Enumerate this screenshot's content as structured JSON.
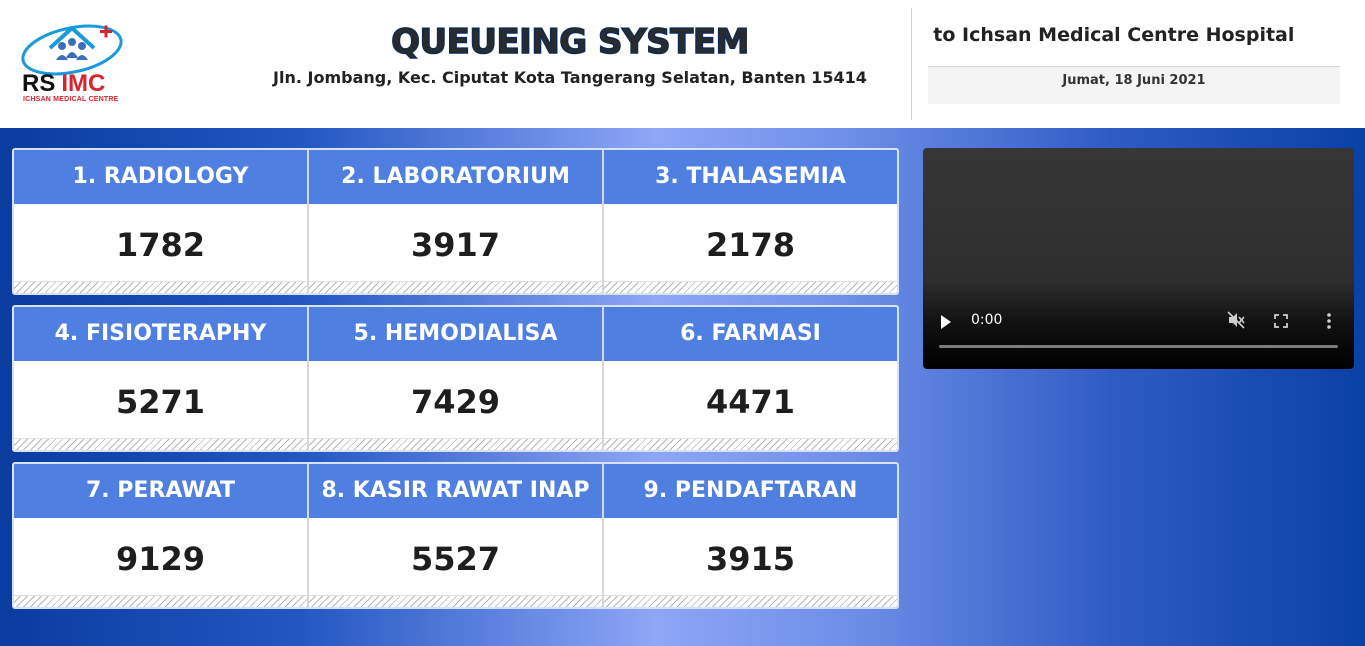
{
  "header": {
    "logo": {
      "rs": "RS",
      "imc": "IMC",
      "subtitle": "ICHSAN MEDICAL CENTRE"
    },
    "title": "QUEUEING SYSTEM",
    "address": "Jln. Jombang, Kec. Ciputat Kota Tangerang Selatan, Banten 15414",
    "marquee": "Welcome to Ichsan Medical Centre Hospital",
    "date": "Jumat, 18 Juni 2021"
  },
  "queues": [
    [
      {
        "label": "1. RADIOLOGY",
        "number": "1782"
      },
      {
        "label": "2. LABORATORIUM",
        "number": "3917"
      },
      {
        "label": "3. THALASEMIA",
        "number": "2178"
      }
    ],
    [
      {
        "label": "4. FISIOTERAPHY",
        "number": "5271"
      },
      {
        "label": "5. HEMODIALISA",
        "number": "7429"
      },
      {
        "label": "6. FARMASI",
        "number": "4471"
      }
    ],
    [
      {
        "label": "7. PERAWAT",
        "number": "9129"
      },
      {
        "label": "8. KASIR RAWAT INAP",
        "number": "5527"
      },
      {
        "label": "9. PENDAFTARAN",
        "number": "3915"
      }
    ]
  ],
  "video": {
    "time": "0:00",
    "progress": 0
  },
  "colors": {
    "header_blue": "#4f7fe0",
    "logo_red": "#d9232d",
    "bg_dark_blue": "#0a3c9f"
  }
}
